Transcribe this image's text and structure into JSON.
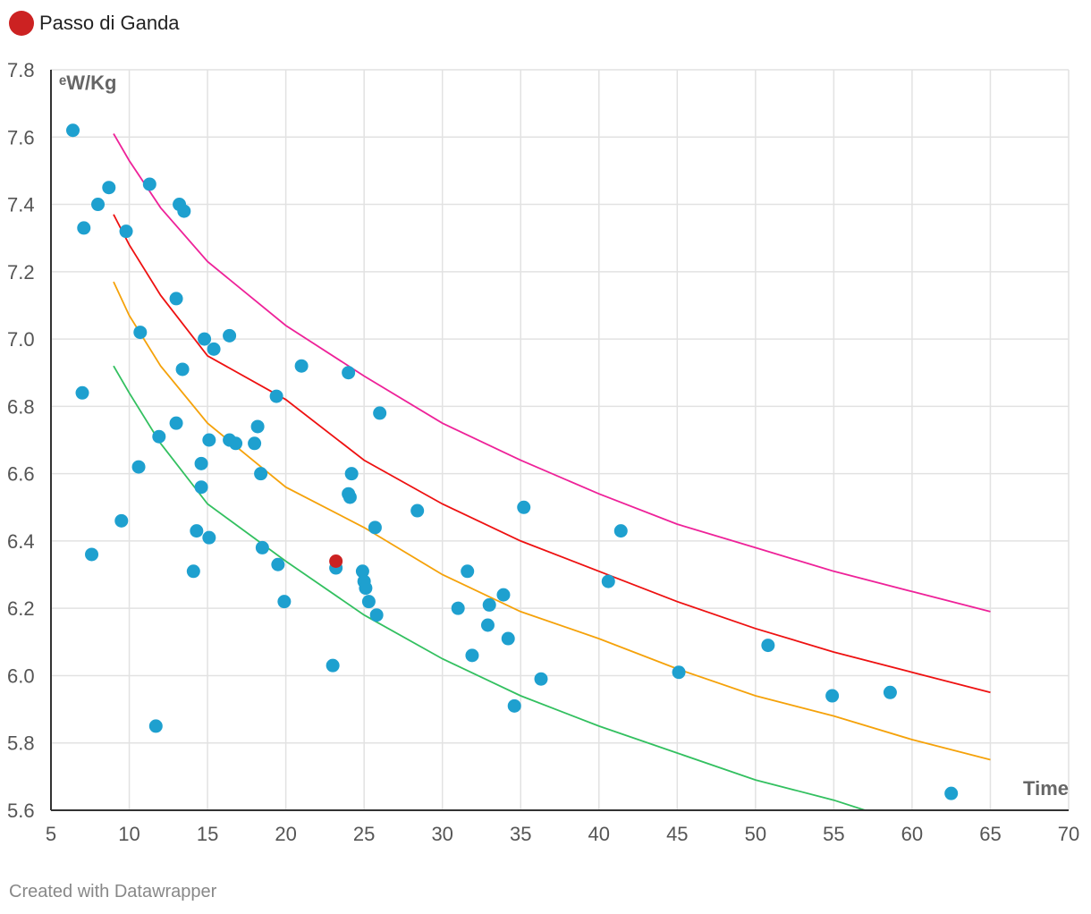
{
  "legend": {
    "label": "Passo di Ganda",
    "color": "#cc2222"
  },
  "footer": {
    "credit": "Created with Datawrapper"
  },
  "chart_data": {
    "type": "scatter",
    "xlabel": "Time",
    "ylabel": "ᵉW/Kg",
    "xlim": [
      5,
      70
    ],
    "ylim": [
      5.6,
      7.8
    ],
    "xticks": [
      5,
      10,
      15,
      20,
      25,
      30,
      35,
      40,
      45,
      50,
      55,
      60,
      65,
      70
    ],
    "yticks": [
      "5.6",
      "5.8",
      "6.0",
      "6.2",
      "6.4",
      "6.6",
      "6.8",
      "7.0",
      "7.2",
      "7.4",
      "7.6",
      "7.8"
    ],
    "point_color": "#1ea0cf",
    "highlight_color": "#cc2222",
    "points": [
      [
        6.4,
        7.62
      ],
      [
        7.1,
        7.33
      ],
      [
        8.0,
        7.4
      ],
      [
        8.7,
        7.45
      ],
      [
        9.8,
        7.32
      ],
      [
        11.3,
        7.46
      ],
      [
        13.2,
        7.4
      ],
      [
        13.5,
        7.38
      ],
      [
        13.0,
        7.12
      ],
      [
        10.7,
        7.02
      ],
      [
        14.8,
        7.0
      ],
      [
        16.4,
        7.01
      ],
      [
        15.4,
        6.97
      ],
      [
        13.4,
        6.91
      ],
      [
        7.0,
        6.84
      ],
      [
        11.9,
        6.71
      ],
      [
        13.0,
        6.75
      ],
      [
        10.6,
        6.62
      ],
      [
        14.6,
        6.63
      ],
      [
        15.1,
        6.7
      ],
      [
        16.4,
        6.7
      ],
      [
        16.8,
        6.69
      ],
      [
        18.0,
        6.69
      ],
      [
        18.2,
        6.74
      ],
      [
        19.4,
        6.83
      ],
      [
        21.0,
        6.92
      ],
      [
        24.0,
        6.9
      ],
      [
        26.0,
        6.78
      ],
      [
        18.4,
        6.6
      ],
      [
        14.6,
        6.56
      ],
      [
        9.5,
        6.46
      ],
      [
        7.6,
        6.36
      ],
      [
        14.3,
        6.43
      ],
      [
        15.1,
        6.41
      ],
      [
        14.1,
        6.31
      ],
      [
        18.5,
        6.38
      ],
      [
        19.5,
        6.33
      ],
      [
        19.9,
        6.22
      ],
      [
        11.7,
        5.85
      ],
      [
        23.0,
        6.03
      ],
      [
        24.2,
        6.6
      ],
      [
        24.0,
        6.54
      ],
      [
        24.1,
        6.53
      ],
      [
        25.7,
        6.44
      ],
      [
        28.4,
        6.49
      ],
      [
        24.9,
        6.31
      ],
      [
        25.0,
        6.28
      ],
      [
        25.1,
        6.26
      ],
      [
        25.3,
        6.22
      ],
      [
        25.8,
        6.18
      ],
      [
        23.2,
        6.32
      ],
      [
        31.0,
        6.2
      ],
      [
        31.6,
        6.31
      ],
      [
        31.9,
        6.06
      ],
      [
        32.9,
        6.15
      ],
      [
        33.0,
        6.21
      ],
      [
        33.9,
        6.24
      ],
      [
        34.2,
        6.11
      ],
      [
        34.6,
        5.91
      ],
      [
        35.2,
        6.5
      ],
      [
        36.3,
        5.99
      ],
      [
        40.6,
        6.28
      ],
      [
        41.4,
        6.43
      ],
      [
        45.1,
        6.01
      ],
      [
        50.8,
        6.09
      ],
      [
        54.9,
        5.94
      ],
      [
        58.6,
        5.95
      ],
      [
        62.5,
        5.65
      ]
    ],
    "highlight_point": [
      23.2,
      6.34
    ],
    "series": [
      {
        "name": "magenta curve",
        "color": "#ee2299",
        "x": [
          9,
          10,
          12,
          15,
          20,
          25,
          30,
          35,
          40,
          45,
          50,
          55,
          60,
          65
        ],
        "values": [
          7.61,
          7.53,
          7.39,
          7.23,
          7.04,
          6.89,
          6.75,
          6.64,
          6.54,
          6.45,
          6.38,
          6.31,
          6.25,
          6.19
        ]
      },
      {
        "name": "red curve",
        "color": "#ee1111",
        "x": [
          9,
          10,
          12,
          15,
          20,
          25,
          30,
          35,
          40,
          45,
          50,
          55,
          60,
          65
        ],
        "values": [
          7.37,
          7.28,
          7.13,
          6.95,
          6.82,
          6.64,
          6.51,
          6.4,
          6.31,
          6.22,
          6.14,
          6.07,
          6.01,
          5.95
        ]
      },
      {
        "name": "orange curve",
        "color": "#f5a20a",
        "x": [
          9,
          10,
          12,
          15,
          20,
          25,
          30,
          35,
          40,
          45,
          50,
          55,
          60,
          65
        ],
        "values": [
          7.17,
          7.07,
          6.92,
          6.75,
          6.56,
          6.44,
          6.3,
          6.19,
          6.11,
          6.02,
          5.94,
          5.88,
          5.81,
          5.75
        ]
      },
      {
        "name": "green curve",
        "color": "#33c060",
        "x": [
          9,
          10,
          12,
          15,
          20,
          25,
          30,
          35,
          40,
          45,
          50,
          55,
          57
        ],
        "values": [
          6.92,
          6.84,
          6.69,
          6.51,
          6.34,
          6.18,
          6.05,
          5.94,
          5.85,
          5.77,
          5.69,
          5.63,
          5.6
        ]
      }
    ]
  }
}
